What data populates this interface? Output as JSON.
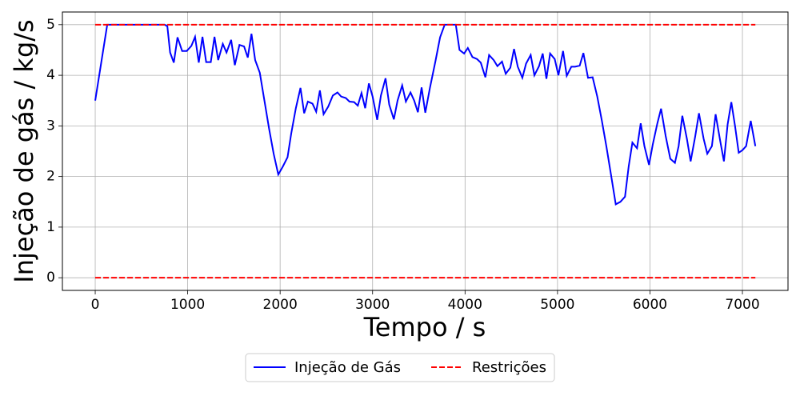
{
  "chart_data": {
    "type": "line",
    "xlabel": "Tempo / s",
    "ylabel": "Injeção de gás / kg/s",
    "xlim": [
      -355,
      7493
    ],
    "ylim": [
      -0.25,
      5.25
    ],
    "xticks": [
      0,
      1000,
      2000,
      3000,
      4000,
      5000,
      6000,
      7000
    ],
    "yticks": [
      0,
      1,
      2,
      3,
      4,
      5
    ],
    "grid": true,
    "legend": "bottom",
    "series": [
      {
        "name": "Injeção de Gás",
        "color": "#0000ff",
        "linestyle": "solid",
        "x": [
          0,
          130,
          200,
          300,
          400,
          500,
          600,
          700,
          750,
          780,
          810,
          850,
          890,
          940,
          990,
          1040,
          1080,
          1120,
          1160,
          1200,
          1250,
          1290,
          1330,
          1380,
          1420,
          1470,
          1510,
          1560,
          1610,
          1650,
          1690,
          1730,
          1780,
          1830,
          1880,
          1930,
          1980,
          2030,
          2080,
          2120,
          2170,
          2220,
          2260,
          2300,
          2350,
          2390,
          2430,
          2470,
          2520,
          2570,
          2620,
          2660,
          2710,
          2750,
          2800,
          2840,
          2880,
          2920,
          2960,
          3000,
          3050,
          3090,
          3140,
          3180,
          3230,
          3270,
          3320,
          3360,
          3410,
          3450,
          3490,
          3530,
          3570,
          3620,
          3680,
          3730,
          3780,
          3840,
          3900,
          3940,
          3990,
          4030,
          4080,
          4130,
          4170,
          4220,
          4260,
          4310,
          4350,
          4400,
          4440,
          4490,
          4530,
          4570,
          4620,
          4660,
          4710,
          4750,
          4800,
          4840,
          4880,
          4920,
          4970,
          5010,
          5060,
          5100,
          5150,
          5190,
          5240,
          5280,
          5330,
          5380,
          5430,
          5480,
          5530,
          5580,
          5630,
          5680,
          5730,
          5770,
          5810,
          5860,
          5900,
          5940,
          5990,
          6030,
          6080,
          6120,
          6170,
          6220,
          6270,
          6310,
          6350,
          6400,
          6440,
          6490,
          6530,
          6580,
          6620,
          6670,
          6710,
          6760,
          6800,
          6840,
          6880,
          6920,
          6960,
          7000,
          7040,
          7090,
          7140
        ],
        "values": [
          3.5,
          5.0,
          5.0,
          5.0,
          5.0,
          5.0,
          5.0,
          5.0,
          5.0,
          4.97,
          4.45,
          4.25,
          4.75,
          4.48,
          4.48,
          4.58,
          4.76,
          4.25,
          4.76,
          4.26,
          4.26,
          4.76,
          4.3,
          4.62,
          4.45,
          4.7,
          4.2,
          4.6,
          4.57,
          4.35,
          4.82,
          4.3,
          4.05,
          3.5,
          2.95,
          2.45,
          2.04,
          2.2,
          2.38,
          2.85,
          3.35,
          3.75,
          3.25,
          3.48,
          3.44,
          3.28,
          3.7,
          3.23,
          3.38,
          3.6,
          3.66,
          3.58,
          3.55,
          3.48,
          3.47,
          3.4,
          3.65,
          3.35,
          3.84,
          3.58,
          3.12,
          3.6,
          3.94,
          3.42,
          3.13,
          3.5,
          3.8,
          3.48,
          3.66,
          3.5,
          3.27,
          3.76,
          3.26,
          3.75,
          4.28,
          4.75,
          5.0,
          5.0,
          5.0,
          4.5,
          4.43,
          4.54,
          4.36,
          4.32,
          4.25,
          3.96,
          4.4,
          4.3,
          4.18,
          4.27,
          4.03,
          4.15,
          4.52,
          4.17,
          3.95,
          4.23,
          4.4,
          4.0,
          4.18,
          4.43,
          3.93,
          4.43,
          4.32,
          4.0,
          4.48,
          3.99,
          4.17,
          4.17,
          4.19,
          4.44,
          3.95,
          3.96,
          3.58,
          3.1,
          2.58,
          2.02,
          1.45,
          1.5,
          1.6,
          2.2,
          2.67,
          2.56,
          3.05,
          2.6,
          2.23,
          2.63,
          3.05,
          3.34,
          2.8,
          2.35,
          2.27,
          2.6,
          3.2,
          2.74,
          2.3,
          2.8,
          3.25,
          2.75,
          2.45,
          2.6,
          3.23,
          2.7,
          2.3,
          3.03,
          3.47,
          3.0,
          2.47,
          2.52,
          2.6,
          3.1,
          2.6
        ]
      },
      {
        "name": "Restrições",
        "color": "#ff0000",
        "linestyle": "dashed",
        "x": [
          0,
          7140,
          7140,
          0,
          7140
        ],
        "values": [
          5,
          5,
          null,
          0,
          0
        ]
      }
    ]
  }
}
